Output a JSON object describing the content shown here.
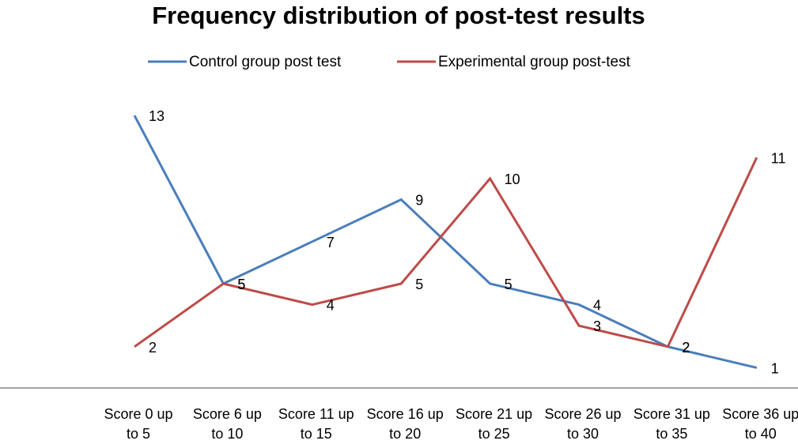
{
  "chart_data": {
    "type": "line",
    "title": "Frequency distribution of post-test results",
    "categories": [
      [
        "Score 0 up",
        "to 5"
      ],
      [
        "Score 6 up",
        "to 10"
      ],
      [
        "Score 11 up",
        "to 15"
      ],
      [
        "Score 16 up",
        "to 20"
      ],
      [
        "Score 21 up",
        "to 25"
      ],
      [
        "Score 26 up",
        "to 30"
      ],
      [
        "Score 31 up",
        "to 35"
      ],
      [
        "Score 36 up",
        "to 40"
      ]
    ],
    "series": [
      {
        "name": "Control group  post test",
        "color": "#4a7ebb",
        "values": [
          13,
          5,
          7,
          9,
          5,
          4,
          2,
          1
        ]
      },
      {
        "name": "Experimental group  post-test",
        "color": "#be4b48",
        "values": [
          2,
          5,
          4,
          5,
          10,
          3,
          2,
          11
        ]
      }
    ],
    "ylim": [
      0,
      14
    ],
    "grid": false,
    "legend_position": "top",
    "xlabel": "",
    "ylabel": ""
  }
}
